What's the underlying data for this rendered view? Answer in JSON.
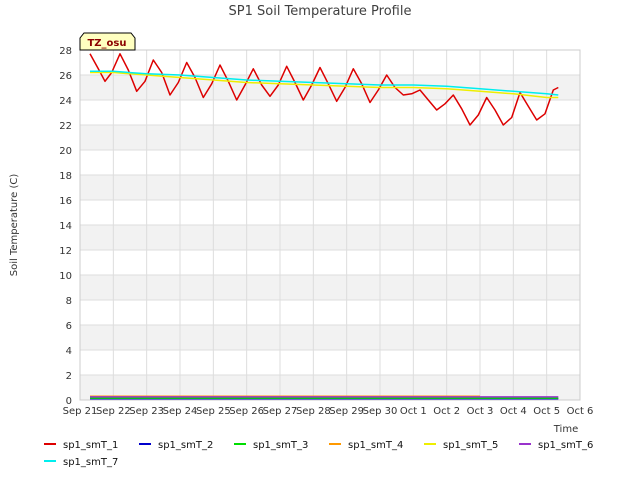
{
  "chart_data": {
    "type": "line",
    "title": "SP1 Soil Temperature Profile",
    "xlabel": "Time",
    "ylabel": "Soil Temperature (C)",
    "badge": "TZ_osu",
    "ylim": [
      0,
      28
    ],
    "yticks": [
      0,
      2,
      4,
      6,
      8,
      10,
      12,
      14,
      16,
      18,
      20,
      22,
      24,
      26,
      28
    ],
    "xlim": [
      0,
      15
    ],
    "xticks": [
      {
        "x": 0,
        "label": "Sep 21"
      },
      {
        "x": 1,
        "label": "Sep 22"
      },
      {
        "x": 2,
        "label": "Sep 23"
      },
      {
        "x": 3,
        "label": "Sep 24"
      },
      {
        "x": 4,
        "label": "Sep 25"
      },
      {
        "x": 5,
        "label": "Sep 26"
      },
      {
        "x": 6,
        "label": "Sep 27"
      },
      {
        "x": 7,
        "label": "Sep 28"
      },
      {
        "x": 8,
        "label": "Sep 29"
      },
      {
        "x": 9,
        "label": "Sep 30"
      },
      {
        "x": 10,
        "label": "Oct 1"
      },
      {
        "x": 11,
        "label": "Oct 2"
      },
      {
        "x": 12,
        "label": "Oct 3"
      },
      {
        "x": 13,
        "label": "Oct 4"
      },
      {
        "x": 14,
        "label": "Oct 5"
      },
      {
        "x": 15,
        "label": "Oct 6"
      }
    ],
    "grid": true,
    "legend_position": "bottom",
    "series": [
      {
        "name": "sp1_smT_1",
        "color": "#dd0000",
        "x": [
          0.3,
          0.55,
          0.75,
          0.95,
          1.2,
          1.45,
          1.7,
          1.95,
          2.2,
          2.45,
          2.7,
          2.95,
          3.2,
          3.45,
          3.7,
          3.95,
          4.2,
          4.45,
          4.7,
          4.95,
          5.2,
          5.45,
          5.7,
          5.95,
          6.2,
          6.45,
          6.7,
          6.95,
          7.2,
          7.45,
          7.7,
          7.95,
          8.2,
          8.45,
          8.7,
          8.95,
          9.2,
          9.45,
          9.7,
          9.95,
          10.2,
          10.45,
          10.7,
          10.95,
          11.2,
          11.45,
          11.7,
          11.95,
          12.2,
          12.45,
          12.7,
          12.95,
          13.2,
          13.45,
          13.7,
          13.95,
          14.2,
          14.35
        ],
        "y": [
          27.7,
          26.5,
          25.5,
          26.2,
          27.7,
          26.4,
          24.7,
          25.5,
          27.2,
          26.2,
          24.4,
          25.4,
          27.0,
          25.8,
          24.2,
          25.3,
          26.8,
          25.5,
          24.0,
          25.2,
          26.5,
          25.2,
          24.3,
          25.2,
          26.7,
          25.4,
          24.0,
          25.2,
          26.6,
          25.3,
          23.9,
          25.0,
          26.5,
          25.3,
          23.8,
          24.8,
          26.0,
          25.0,
          24.4,
          24.5,
          24.8,
          24.0,
          23.2,
          23.7,
          24.4,
          23.3,
          22.0,
          22.8,
          24.2,
          23.2,
          22.0,
          22.6,
          24.6,
          23.5,
          22.4,
          22.9,
          24.8,
          25.0
        ]
      },
      {
        "name": "sp1_smT_2",
        "color": "#0000cc",
        "x": [
          0.3,
          14.35
        ],
        "y": [
          0.1,
          0.1
        ]
      },
      {
        "name": "sp1_smT_3",
        "color": "#00dd00",
        "x": [
          0.3,
          14.35
        ],
        "y": [
          0.15,
          0.15
        ]
      },
      {
        "name": "sp1_smT_4",
        "color": "#ff9900",
        "x": [
          0.3,
          12.0
        ],
        "y": [
          0.3,
          0.3
        ]
      },
      {
        "name": "sp1_smT_5",
        "color": "#eeee00",
        "x": [
          0.3,
          1.0,
          2.0,
          3.0,
          4.0,
          5.0,
          6.0,
          7.0,
          8.0,
          9.0,
          10.0,
          11.0,
          12.0,
          13.0,
          14.0,
          14.35
        ],
        "y": [
          26.2,
          26.2,
          26.0,
          25.8,
          25.6,
          25.4,
          25.3,
          25.2,
          25.1,
          25.0,
          25.0,
          24.9,
          24.7,
          24.5,
          24.2,
          24.2
        ]
      },
      {
        "name": "sp1_smT_6",
        "color": "#9933cc",
        "x": [
          0.3,
          14.35
        ],
        "y": [
          0.25,
          0.25
        ]
      },
      {
        "name": "sp1_smT_7",
        "color": "#00eeee",
        "x": [
          0.3,
          1.0,
          2.0,
          3.0,
          4.0,
          5.0,
          6.0,
          7.0,
          8.0,
          9.0,
          10.0,
          11.0,
          12.0,
          13.0,
          14.0,
          14.35
        ],
        "y": [
          26.3,
          26.3,
          26.1,
          26.0,
          25.8,
          25.6,
          25.5,
          25.4,
          25.3,
          25.2,
          25.2,
          25.1,
          24.9,
          24.7,
          24.5,
          24.4
        ]
      }
    ]
  }
}
